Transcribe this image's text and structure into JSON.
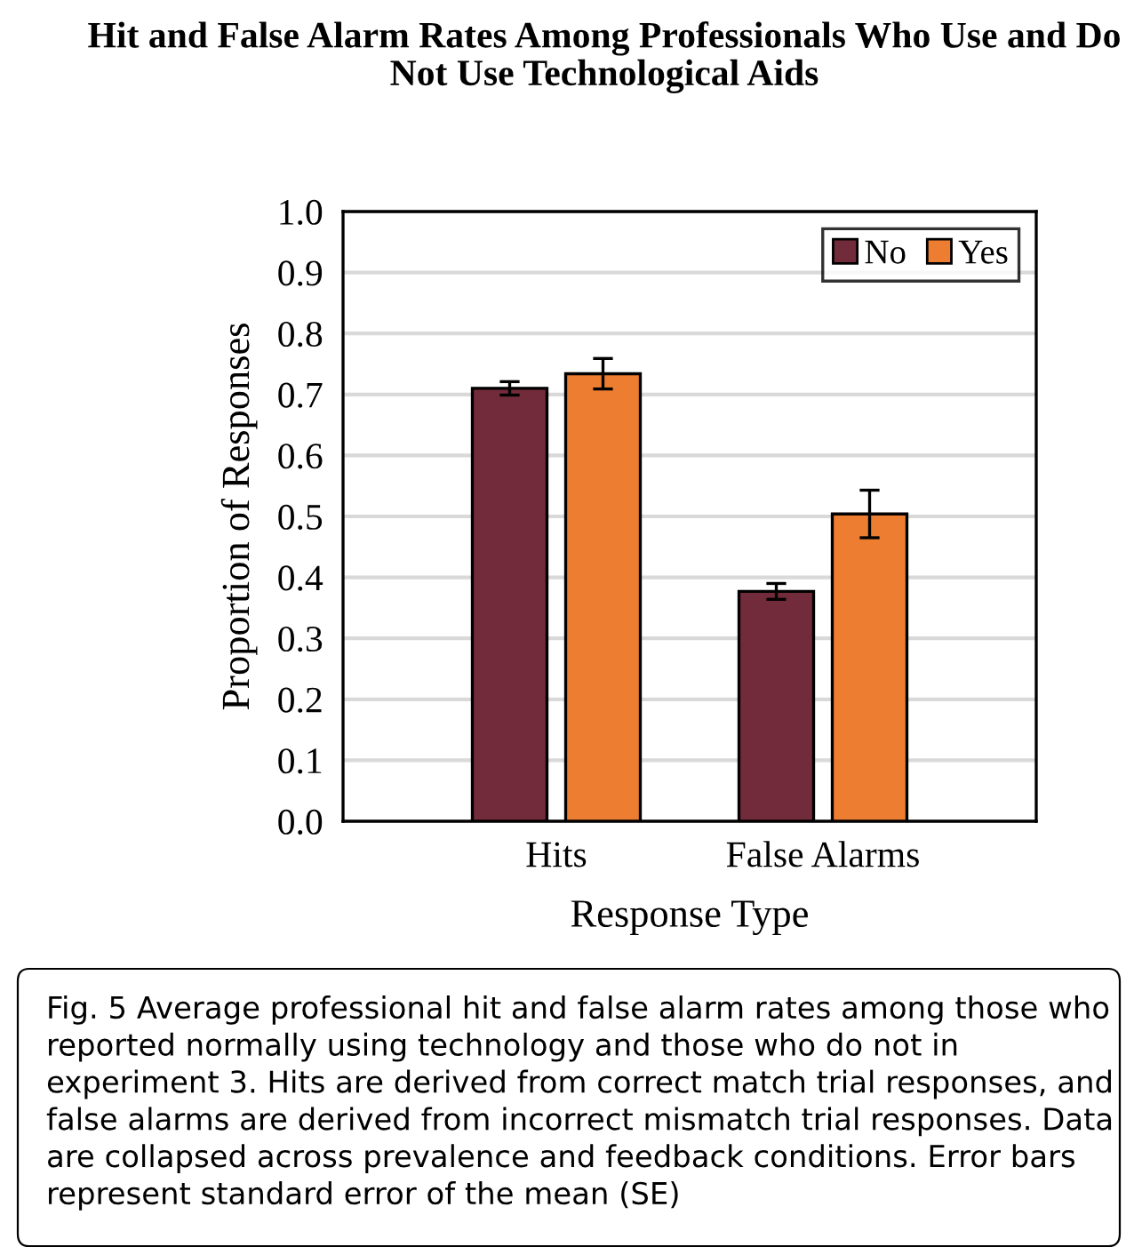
{
  "chart_data": {
    "type": "bar",
    "title": "Hit and False Alarm Rates Among Professionals Who Use and Do Not Use Technological Aids",
    "xlabel": "Response Type",
    "ylabel": "Proportion of Responses",
    "categories": [
      "Hits",
      "False Alarms"
    ],
    "series": [
      {
        "name": "No",
        "color": "#722b3a",
        "values": [
          0.71,
          0.377
        ],
        "errors": [
          0.011,
          0.013
        ]
      },
      {
        "name": "Yes",
        "color": "#ed7d31",
        "values": [
          0.734,
          0.504
        ],
        "errors": [
          0.025,
          0.039
        ]
      }
    ],
    "ylim": [
      0,
      1
    ],
    "yticks": [
      {
        "value": 0,
        "label": "0.0"
      },
      0.1,
      0.2,
      0.3,
      0.4,
      0.5,
      0.6,
      0.7,
      0.8,
      0.9,
      {
        "value": 1,
        "label": "1.0"
      }
    ],
    "grid": "y",
    "legend": "top right",
    "annotations": [
      "Fig. 5 Average professional hit and false alarm rates among those who reported normally using technology and those who do not in experiment 3. Hits are derived from correct match trial responses, and false alarms are derived from incorrect mismatch trial responses. Data are collapsed across prevalence and feedback conditions. Error bars represent standard error of the mean (SE)"
    ]
  }
}
